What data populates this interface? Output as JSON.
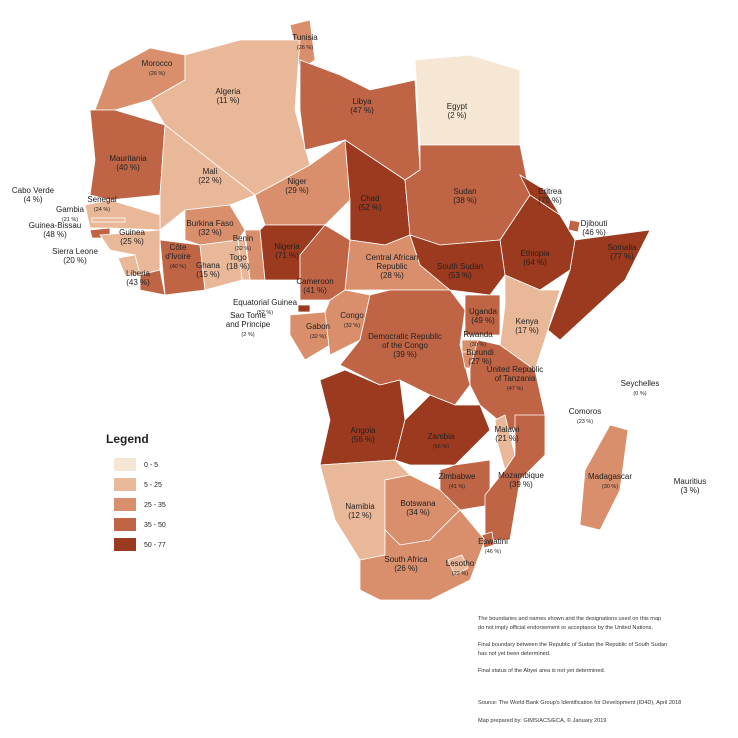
{
  "map": {
    "legend": {
      "title": "Legend",
      "items": [
        {
          "label": "0 - 5",
          "max": 5,
          "color": "#f6e7d5"
        },
        {
          "label": "5 - 25",
          "max": 25,
          "color": "#e9b899"
        },
        {
          "label": "25 - 35",
          "max": 35,
          "color": "#d98e6c"
        },
        {
          "label": "35 - 50",
          "max": 50,
          "color": "#bf6546"
        },
        {
          "label": "50 - 77",
          "max": 77,
          "color": "#9c3a1f"
        }
      ]
    },
    "countries": [
      {
        "name": [
          "Tunisia"
        ],
        "label": "(26 %)",
        "value": 26
      },
      {
        "name": [
          "Morocco"
        ],
        "label": "(26 %)",
        "value": 26
      },
      {
        "name": [
          "Algeria"
        ],
        "label": "(11 %)",
        "value": 11
      },
      {
        "name": [
          "Libya"
        ],
        "label": "(47 %)",
        "value": 47
      },
      {
        "name": [
          "Egypt"
        ],
        "label": "(2 %)",
        "value": 2
      },
      {
        "name": [
          "Mauritania"
        ],
        "label": "(40 %)",
        "value": 40
      },
      {
        "name": [
          "Mali"
        ],
        "label": "(22 %)",
        "value": 22
      },
      {
        "name": [
          "Niger"
        ],
        "label": "(29 %)",
        "value": 29
      },
      {
        "name": [
          "Chad"
        ],
        "label": "(52 %)",
        "value": 52
      },
      {
        "name": [
          "Sudan"
        ],
        "label": "(38 %)",
        "value": 38
      },
      {
        "name": [
          "Eritrea"
        ],
        "label": "(70 %)",
        "value": 70
      },
      {
        "name": [
          "Djibouti"
        ],
        "label": "(46 %)",
        "value": 46
      },
      {
        "name": [
          "Somalia"
        ],
        "label": "(77 %)",
        "value": 77
      },
      {
        "name": [
          "Ethiopia"
        ],
        "label": "(64 %)",
        "value": 64
      },
      {
        "name": [
          "Cabo Verde"
        ],
        "label": "(4 %)",
        "value": 4
      },
      {
        "name": [
          "Senegal"
        ],
        "label": "(24 %)",
        "value": 24
      },
      {
        "name": [
          "Gambia"
        ],
        "label": "(21 %)",
        "value": 21
      },
      {
        "name": [
          "Guinea-Bissau"
        ],
        "label": "(48 %)",
        "value": 48
      },
      {
        "name": [
          "Guinea"
        ],
        "label": "(25 %)",
        "value": 25
      },
      {
        "name": [
          "Burkina Faso"
        ],
        "label": "(32 %)",
        "value": 32
      },
      {
        "name": [
          "Benin"
        ],
        "label": "(32 %)",
        "value": 32
      },
      {
        "name": [
          "Togo"
        ],
        "label": "(18 %)",
        "value": 18
      },
      {
        "name": [
          "Nigeria"
        ],
        "label": "(71 %)",
        "value": 71
      },
      {
        "name": [
          "Sierra Leone"
        ],
        "label": "(20 %)",
        "value": 20
      },
      {
        "name": [
          "Côte",
          "d'Ivoire"
        ],
        "label": "(40 %)",
        "value": 40
      },
      {
        "name": [
          "Ghana"
        ],
        "label": "(15 %)",
        "value": 15
      },
      {
        "name": [
          "Liberia"
        ],
        "label": "(43 %)",
        "value": 43
      },
      {
        "name": [
          "Central African",
          "Republic"
        ],
        "label": "(28 %)",
        "value": 28
      },
      {
        "name": [
          "South Sudan"
        ],
        "label": "(53 %)",
        "value": 53
      },
      {
        "name": [
          "Cameroon"
        ],
        "label": "(41 %)",
        "value": 41
      },
      {
        "name": [
          "Equatorial Guinea"
        ],
        "label": "(52 %)",
        "value": 52
      },
      {
        "name": [
          "Sao Tome",
          "and Principe"
        ],
        "label": "(2 %)",
        "value": 2
      },
      {
        "name": [
          "Gabon"
        ],
        "label": "(32 %)",
        "value": 32
      },
      {
        "name": [
          "Congo"
        ],
        "label": "(32 %)",
        "value": 32
      },
      {
        "name": [
          "Uganda"
        ],
        "label": "(49 %)",
        "value": 49
      },
      {
        "name": [
          "Kenya"
        ],
        "label": "(17 %)",
        "value": 17
      },
      {
        "name": [
          "Democratic Republic",
          "of the Congo"
        ],
        "label": "(39 %)",
        "value": 39
      },
      {
        "name": [
          "Rwanda"
        ],
        "label": "(30 %)",
        "value": 30
      },
      {
        "name": [
          "Burundi"
        ],
        "label": "(27 %)",
        "value": 27
      },
      {
        "name": [
          "United Republic",
          "of Tanzania"
        ],
        "label": "(47 %)",
        "value": 47
      },
      {
        "name": [
          "Seychelles"
        ],
        "label": "(0 %)",
        "value": 0
      },
      {
        "name": [
          "Comoros"
        ],
        "label": "(23 %)",
        "value": 23
      },
      {
        "name": [
          "Angola"
        ],
        "label": "(56 %)",
        "value": 56
      },
      {
        "name": [
          "Zambia"
        ],
        "label": "(56 %)",
        "value": 56
      },
      {
        "name": [
          "Malawi"
        ],
        "label": "(21 %)",
        "value": 21
      },
      {
        "name": [
          "Zimbabwe"
        ],
        "label": "(41 %)",
        "value": 41
      },
      {
        "name": [
          "Mozambique"
        ],
        "label": "(39 %)",
        "value": 39
      },
      {
        "name": [
          "Madagascar"
        ],
        "label": "(30 %)",
        "value": 30
      },
      {
        "name": [
          "Mauritius"
        ],
        "label": "(3 %)",
        "value": 3
      },
      {
        "name": [
          "Namibia"
        ],
        "label": "(12 %)",
        "value": 12
      },
      {
        "name": [
          "Botswana"
        ],
        "label": "(34 %)",
        "value": 34
      },
      {
        "name": [
          "Eswatini"
        ],
        "label": "(46 %)",
        "value": 46
      },
      {
        "name": [
          "South Africa"
        ],
        "label": "(26 %)",
        "value": 26
      },
      {
        "name": [
          "Lesotho"
        ],
        "label": "(22 %)",
        "value": 22
      }
    ],
    "notes": [
      [
        "The boundaries and names shown and the designations used on this map",
        "do not imply official endorsement or acceptance by the United Nations."
      ],
      [
        "Final boundary between the Republic of Sudan the Republic of South Sudan",
        "has not yet been determined."
      ],
      [
        "Final status of the Abyei area is not yet determined."
      ]
    ],
    "source": "Source: The World Bank Group's Identification for Development (ID4D), April 2018",
    "prepared_by": "Map prepared by: GIMS/ACS/ECA, © January 2019"
  }
}
